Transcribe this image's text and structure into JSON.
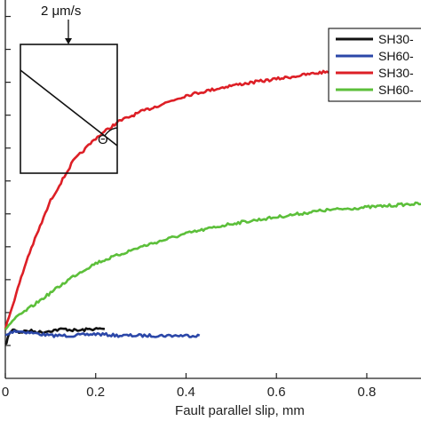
{
  "chart_data": {
    "type": "line",
    "xlabel": "Fault parallel slip, mm",
    "ylabel": "",
    "xlim": [
      0,
      0.92
    ],
    "ylim": [
      -0.1,
      1.05
    ],
    "x_ticks": [
      0,
      0.2,
      0.4,
      0.6,
      0.8
    ],
    "x_tick_labels": [
      "0",
      "0.2",
      "0.4",
      "0.6",
      "0.8"
    ],
    "y_tick_values": [
      0,
      0.1,
      0.2,
      0.3,
      0.4,
      0.5,
      0.6,
      0.7,
      0.8,
      0.9,
      1.0
    ],
    "legend_position": "top-right",
    "series": [
      {
        "name": "SH30-",
        "color": "#111111",
        "x": [
          0,
          0.005,
          0.01,
          0.02,
          0.03,
          0.05,
          0.08,
          0.1,
          0.13,
          0.16,
          0.19,
          0.22
        ],
        "y": [
          0.0,
          0.02,
          0.04,
          0.05,
          0.04,
          0.045,
          0.04,
          0.045,
          0.05,
          0.045,
          0.05,
          0.05
        ]
      },
      {
        "name": "SH60-",
        "color": "#2b47a8",
        "x": [
          0,
          0.02,
          0.05,
          0.1,
          0.15,
          0.2,
          0.25,
          0.3,
          0.35,
          0.4,
          0.43
        ],
        "y": [
          0.03,
          0.045,
          0.04,
          0.03,
          0.03,
          0.035,
          0.03,
          0.03,
          0.03,
          0.03,
          0.03
        ]
      },
      {
        "name": "SH30-",
        "color": "#dd1f26",
        "x": [
          0,
          0.02,
          0.05,
          0.1,
          0.15,
          0.2,
          0.25,
          0.3,
          0.4,
          0.5,
          0.6,
          0.7,
          0.8,
          0.9,
          0.92
        ],
        "y": [
          0.05,
          0.14,
          0.27,
          0.44,
          0.56,
          0.63,
          0.68,
          0.71,
          0.76,
          0.79,
          0.81,
          0.83,
          0.845,
          0.86,
          0.86
        ]
      },
      {
        "name": "SH60-",
        "color": "#5cbf3a",
        "x": [
          0,
          0.02,
          0.05,
          0.1,
          0.15,
          0.2,
          0.3,
          0.4,
          0.5,
          0.6,
          0.7,
          0.8,
          0.9,
          0.92
        ],
        "y": [
          0.05,
          0.08,
          0.11,
          0.16,
          0.21,
          0.25,
          0.3,
          0.34,
          0.37,
          0.39,
          0.41,
          0.42,
          0.43,
          0.43
        ]
      }
    ],
    "inset": {
      "arrow_label": "2 μm/s",
      "angle_label": "Θ"
    }
  }
}
